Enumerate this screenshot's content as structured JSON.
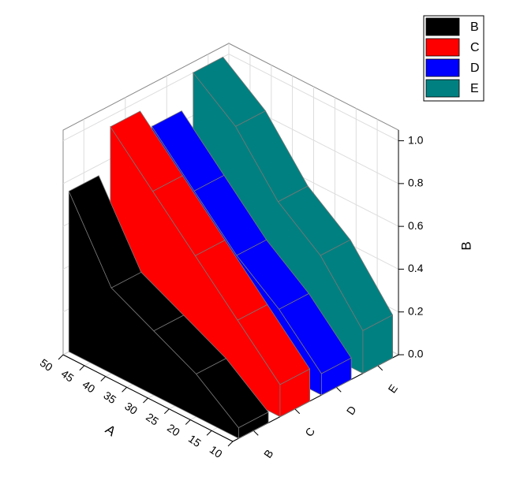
{
  "chart_data": {
    "type": "wall3d",
    "x": [
      10,
      20,
      30,
      40,
      50
    ],
    "xlim": [
      10,
      50
    ],
    "xticks": [
      10,
      15,
      20,
      25,
      30,
      35,
      40,
      45,
      50
    ],
    "xlabel": "A",
    "ylabel": "B",
    "ylim": [
      0,
      1.05
    ],
    "yticks": [
      {
        "value": 0,
        "label": "0.0"
      },
      0.2,
      0.4,
      0.6,
      0.8,
      {
        "value": 1,
        "label": "1.0"
      }
    ],
    "grid": true,
    "legend": "upper right",
    "series": [
      {
        "name": "B",
        "color": "#000000",
        "values": [
          0.05,
          0.2,
          0.3,
          0.4,
          0.75
        ]
      },
      {
        "name": "C",
        "color": "#ff0000",
        "values": [
          0.15,
          0.35,
          0.55,
          0.75,
          0.95
        ]
      },
      {
        "name": "D",
        "color": "#0000ff",
        "values": [
          0.1,
          0.3,
          0.45,
          0.65,
          0.85
        ]
      },
      {
        "name": "E",
        "color": "#008080",
        "values": [
          0.2,
          0.45,
          0.6,
          0.85,
          1.0
        ]
      }
    ]
  }
}
